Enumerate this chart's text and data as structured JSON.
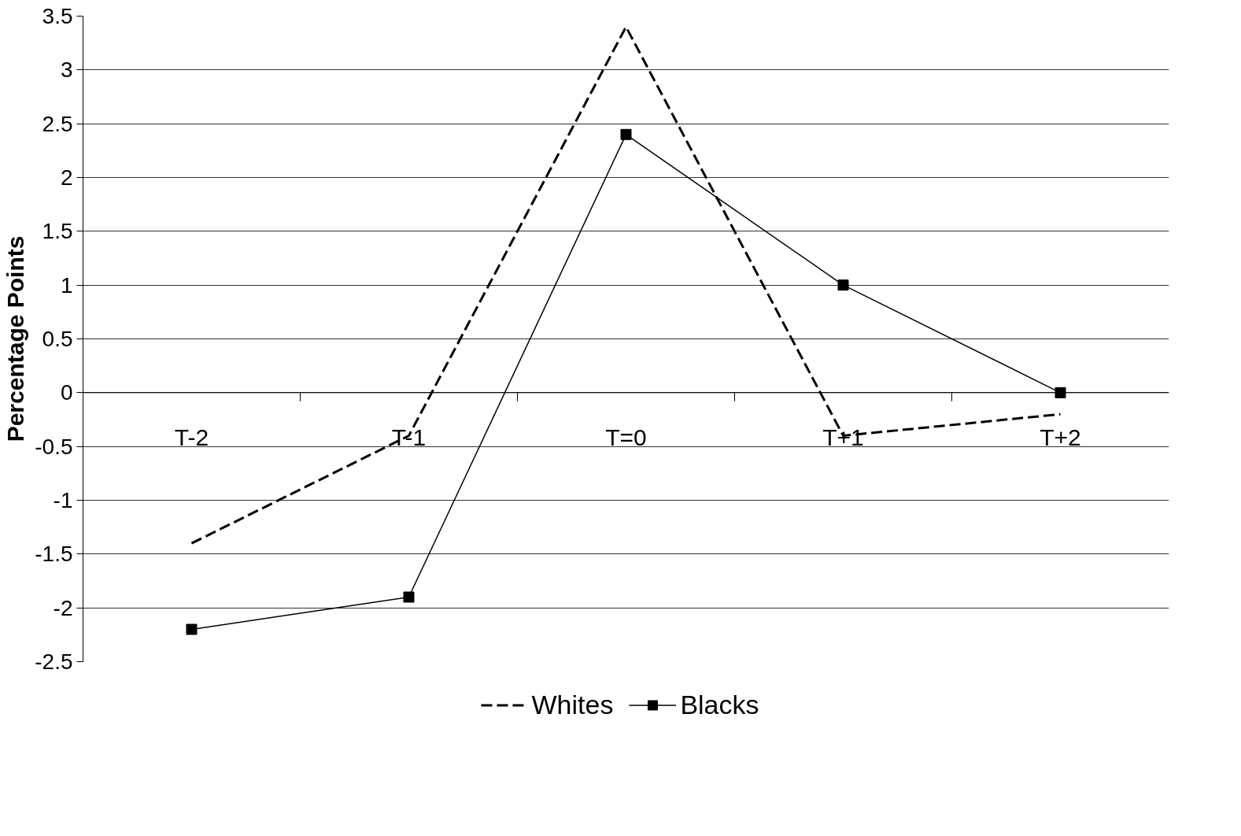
{
  "chart_data": {
    "type": "line",
    "ylabel": "Percentage Points",
    "categories": [
      "T-2",
      "T-1",
      "T=0",
      "T+1",
      "T+2"
    ],
    "series": [
      {
        "name": "Whites",
        "color": "#000000",
        "values": [
          -1.4,
          -0.4,
          3.4,
          -0.4,
          -0.2
        ],
        "line_style": "dashed",
        "marker": "none"
      },
      {
        "name": "Blacks",
        "color": "#000000",
        "values": [
          -2.2,
          -1.9,
          2.4,
          1.0,
          0.0
        ],
        "line_style": "solid",
        "marker": "square"
      }
    ],
    "ylim": [
      -2.5,
      3.5
    ],
    "yticks": [
      -2.5,
      -2,
      -1.5,
      -1,
      -0.5,
      0,
      0.5,
      1,
      1.5,
      2,
      2.5,
      3,
      3.5
    ],
    "grid": "y",
    "legend": "bottom"
  }
}
